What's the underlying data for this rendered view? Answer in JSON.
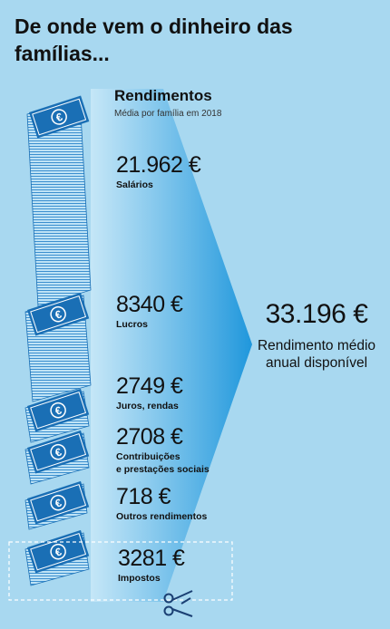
{
  "headline": "De onde vem o dinheiro das famílias...",
  "section": {
    "title": "Rendimentos",
    "subtitle": "Média por família em 2018"
  },
  "items": [
    {
      "amount": "21.962 €",
      "label": "Salários"
    },
    {
      "amount": "8340 €",
      "label": "Lucros"
    },
    {
      "amount": "2749 €",
      "label": "Juros, rendas"
    },
    {
      "amount": "2708 €",
      "label": "Contribuições\ne prestações sociais"
    },
    {
      "amount": "718 €",
      "label": "Outros rendimentos"
    },
    {
      "amount": "3281 €",
      "label": "Impostos"
    }
  ],
  "total": {
    "amount": "33.196 €",
    "label": "Rendimento médio anual disponível"
  },
  "icons": {
    "banknote": "euro-banknote-icon",
    "currency_symbol": "€",
    "scissors": "scissors-icon"
  },
  "colors": {
    "background": "#a8d8f0",
    "banknote": "#1a6fb5",
    "funnel": "#2ea3e0"
  }
}
